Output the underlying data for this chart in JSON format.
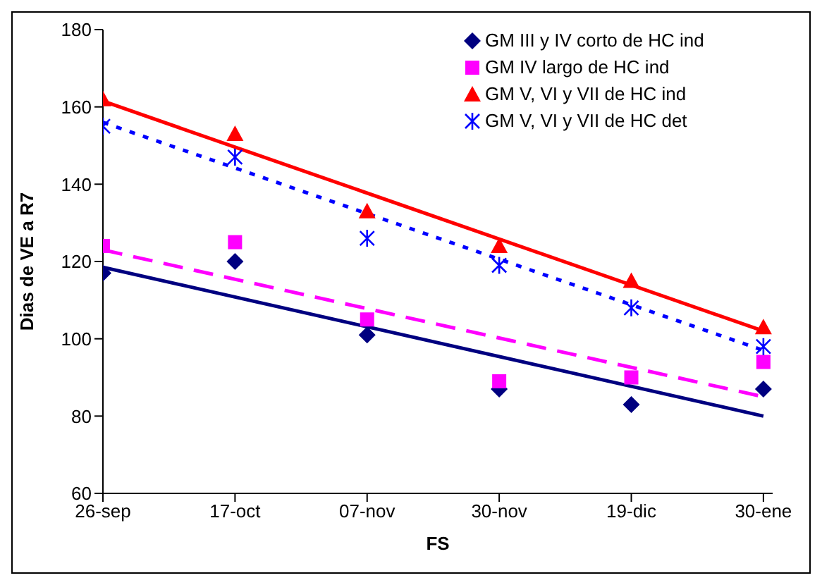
{
  "chart_data": {
    "type": "scatter",
    "xlabel": "FS",
    "ylabel": "Dias de VE a R7",
    "categories": [
      "26-sep",
      "17-oct",
      "07-nov",
      "30-nov",
      "19-dic",
      "30-ene"
    ],
    "ylim": [
      60,
      180
    ],
    "yticks": [
      60,
      80,
      100,
      120,
      140,
      160,
      180
    ],
    "grid": false,
    "legend": "top right",
    "series": [
      {
        "name": "GM III y IV corto de HC ind",
        "marker": "diamond",
        "color": "#000080",
        "values": [
          117,
          120,
          101,
          87,
          83,
          87
        ]
      },
      {
        "name": "GM IV largo de HC ind",
        "marker": "square",
        "color": "#ff00ff",
        "values": [
          124,
          125,
          105,
          89,
          90,
          94
        ]
      },
      {
        "name": "GM V, VI y VII de HC ind",
        "marker": "triangle",
        "color": "#ff0000",
        "values": [
          162,
          153,
          133,
          124,
          115,
          103
        ]
      },
      {
        "name": "GM V, VI y VII de HC det",
        "marker": "cross",
        "color": "#0000ff",
        "values": [
          155,
          147,
          126,
          119,
          108,
          98
        ]
      },
      {
        "type": "line",
        "line_style": "solid",
        "marker": "none",
        "color": "#000080",
        "x": [
          "26-sep",
          "30-ene"
        ],
        "values": [
          118.5,
          80
        ]
      },
      {
        "type": "line",
        "line_style": "dashed",
        "marker": "none",
        "color": "#ff00ff",
        "x": [
          "26-sep",
          "30-ene"
        ],
        "values": [
          123,
          85
        ]
      },
      {
        "type": "line",
        "line_style": "solid",
        "marker": "none",
        "color": "#ff0000",
        "x": [
          "26-sep",
          "30-ene"
        ],
        "values": [
          161.5,
          102
        ]
      },
      {
        "type": "line",
        "line_style": "dotted",
        "marker": "none",
        "color": "#0000ff",
        "x": [
          "26-sep",
          "30-ene"
        ],
        "values": [
          156,
          97
        ]
      }
    ]
  }
}
